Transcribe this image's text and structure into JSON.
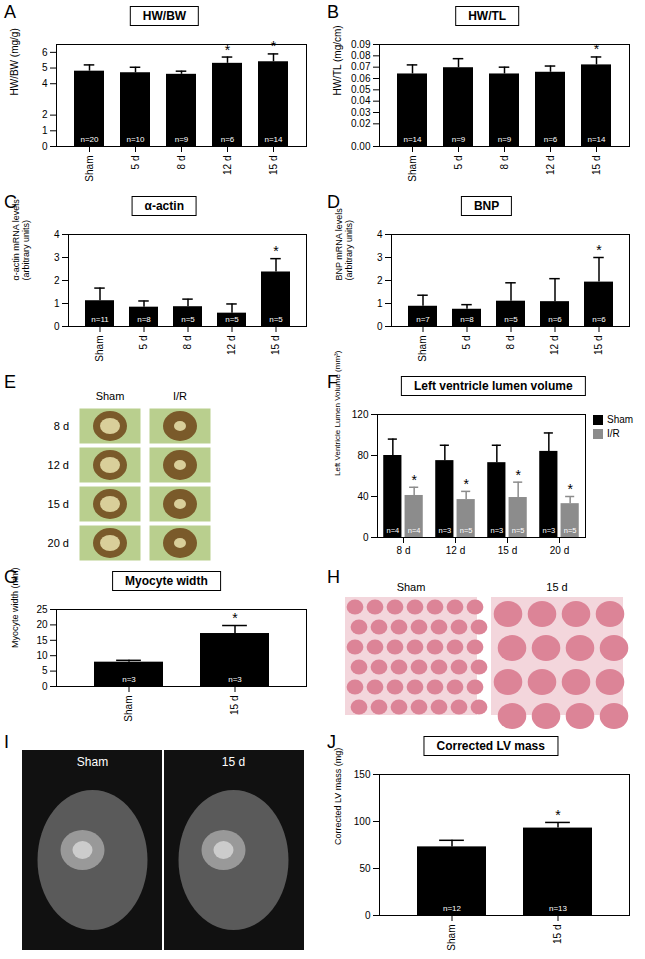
{
  "chart_data": [
    {
      "panel": "A",
      "type": "bar",
      "title": "HW/BW",
      "y_label": [
        "HW/BW (mg/g)"
      ],
      "categories": [
        "Sham",
        "5 d",
        "8 d",
        "12 d",
        "15 d"
      ],
      "values": [
        4.8,
        4.7,
        4.6,
        5.3,
        5.4
      ],
      "errors": [
        0.4,
        0.35,
        0.2,
        0.4,
        0.5
      ],
      "n_labels": [
        "n=20",
        "n=10",
        "n=9",
        "n=6",
        "n=14"
      ],
      "significance": [
        null,
        null,
        null,
        "*",
        "*"
      ],
      "color": "#000000",
      "ylim": [
        0,
        6.5
      ],
      "yticks": [
        0,
        1,
        2,
        4,
        5,
        6
      ]
    },
    {
      "panel": "B",
      "type": "bar",
      "title": "HW/TL",
      "y_label": [
        "HW/TL (mg/cm)"
      ],
      "categories": [
        "Sham",
        "5 d",
        "8 d",
        "12 d",
        "15 d"
      ],
      "values": [
        0.064,
        0.0695,
        0.064,
        0.0655,
        0.072
      ],
      "errors": [
        0.008,
        0.008,
        0.006,
        0.0055,
        0.007
      ],
      "n_labels": [
        "n=14",
        "n=9",
        "n=9",
        "n=6",
        "n=14"
      ],
      "significance": [
        null,
        null,
        null,
        null,
        "*"
      ],
      "color": "#000000",
      "ylim": [
        0,
        0.09
      ],
      "yticks": [
        {
          "value": 0,
          "label": "0.00"
        },
        {
          "value": 0.02,
          "label": "0.02"
        },
        {
          "value": 0.03,
          "label": "0.03"
        },
        {
          "value": 0.04,
          "label": "0.04"
        },
        {
          "value": 0.05,
          "label": "0.05"
        },
        {
          "value": 0.06,
          "label": "0.06"
        },
        {
          "value": 0.07,
          "label": "0.07"
        },
        {
          "value": 0.08,
          "label": "0.08"
        },
        {
          "value": 0.09,
          "label": "0.09"
        }
      ]
    },
    {
      "panel": "C",
      "type": "bar",
      "title": "α-actin",
      "y_label": [
        "α-actin mRNA levels",
        "(arbitrary units)"
      ],
      "categories": [
        "Sham",
        "5 d",
        "8 d",
        "12 d",
        "15 d"
      ],
      "values": [
        1.12,
        0.84,
        0.86,
        0.58,
        2.37
      ],
      "errors": [
        0.55,
        0.27,
        0.33,
        0.4,
        0.58
      ],
      "n_labels": [
        "n=11",
        "n=8",
        "n=5",
        "n=5",
        "n=5"
      ],
      "significance": [
        null,
        null,
        null,
        null,
        "*"
      ],
      "color": "#000000",
      "ylim": [
        0,
        4
      ],
      "yticks": [
        0,
        1,
        2,
        3,
        4
      ]
    },
    {
      "panel": "D",
      "type": "bar",
      "title": "BNP",
      "y_label": [
        "BNP mRNA levels",
        "(arbitrary units)"
      ],
      "categories": [
        "Sham",
        "5 d",
        "8 d",
        "12 d",
        "15 d"
      ],
      "values": [
        0.88,
        0.75,
        1.1,
        1.08,
        1.93
      ],
      "errors": [
        0.48,
        0.2,
        0.8,
        1.0,
        1.07
      ],
      "n_labels": [
        "n=7",
        "n=8",
        "n=5",
        "n=6",
        "n=6"
      ],
      "significance": [
        null,
        null,
        null,
        null,
        "*"
      ],
      "color": "#000000",
      "ylim": [
        0,
        4
      ],
      "yticks": [
        0,
        1,
        2,
        3,
        4
      ]
    },
    {
      "panel": "F",
      "type": "bar",
      "title": "Left ventricle lumen volume",
      "y_label": [
        "Left Ventricle Lumen Volume (mm³)"
      ],
      "categories": [
        "8 d",
        "12 d",
        "15 d",
        "20 d"
      ],
      "series": [
        {
          "name": "Sham",
          "color": "#000000",
          "values": [
            80,
            75,
            73,
            84
          ],
          "errors": [
            16,
            15,
            17,
            18
          ],
          "n_labels": [
            "n=4",
            "n=3",
            "n=3",
            "n=3"
          ],
          "significance": [
            null,
            null,
            null,
            null
          ]
        },
        {
          "name": "I/R",
          "color": "#8c8c8c",
          "values": [
            41,
            37,
            39,
            33
          ],
          "errors": [
            8,
            8,
            15,
            7
          ],
          "n_labels": [
            "n=4",
            "n=5",
            "n=5",
            "n=5"
          ],
          "significance": [
            "*",
            "*",
            "*",
            "*"
          ]
        }
      ],
      "legend": "right",
      "ylim": [
        0,
        120
      ],
      "yticks": [
        0,
        40,
        80,
        120
      ]
    },
    {
      "panel": "G",
      "type": "bar",
      "title": "Myocyte width",
      "y_label": [
        "Myocyte width (mm)"
      ],
      "categories": [
        "Sham",
        "15 d"
      ],
      "values": [
        7.9,
        17.2
      ],
      "errors": [
        0.6,
        2.6
      ],
      "n_labels": [
        "n=3",
        "n=3"
      ],
      "significance": [
        null,
        "*"
      ],
      "color": "#000000",
      "ylim": [
        0,
        25
      ],
      "yticks": [
        0,
        5,
        10,
        15,
        20,
        25
      ]
    },
    {
      "panel": "J",
      "type": "bar",
      "title": "Corrected LV mass",
      "y_label": [
        "Corrected LV mass (mg)"
      ],
      "categories": [
        "Sham",
        "15 d"
      ],
      "values": [
        73,
        93
      ],
      "errors": [
        7,
        6
      ],
      "n_labels": [
        "n=12",
        "n=13"
      ],
      "significance": [
        null,
        "*"
      ],
      "color": "#000000",
      "ylim": [
        0,
        150
      ],
      "yticks": [
        0,
        50,
        100,
        150
      ]
    }
  ],
  "images": [
    {
      "panel": "E",
      "type": "image",
      "column_labels": [
        "Sham",
        "I/R"
      ],
      "row_labels": [
        "8 d",
        "12 d",
        "15 d",
        "20 d"
      ]
    },
    {
      "panel": "H",
      "type": "image",
      "labels": [
        "Sham",
        "15 d"
      ]
    },
    {
      "panel": "I",
      "type": "image",
      "labels": [
        "Sham",
        "15 d"
      ]
    }
  ]
}
